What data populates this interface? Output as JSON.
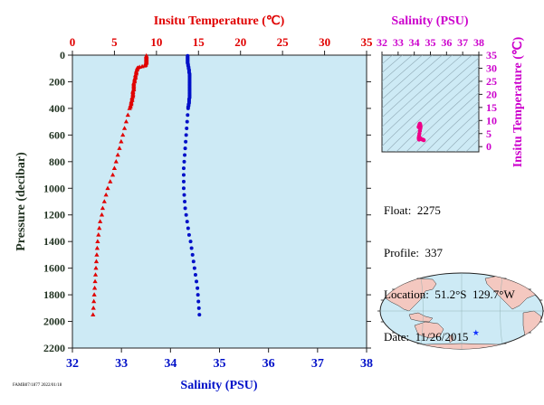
{
  "colors": {
    "panel_bg": "#cdeaf5",
    "temperature": "#e00000",
    "salinity": "#0010c8",
    "pressure_axis": "#223322",
    "ts_axis": "#cc00cc",
    "ts_points": "#ee0088",
    "float_marker": "#1133ff"
  },
  "chart_data": [
    {
      "type": "scatter",
      "top_axis_title": "Insitu Temperature (℃)",
      "bottom_axis_title": "Salinity (PSU)",
      "left_axis_title": "Pressure (decibar)",
      "temperature_ticks": [
        "0",
        "5",
        "10",
        "15",
        "20",
        "25",
        "30",
        "35"
      ],
      "salinity_ticks": [
        "32",
        "33",
        "34",
        "35",
        "36",
        "37",
        "38"
      ],
      "pressure_ticks": [
        "0",
        "200",
        "400",
        "600",
        "800",
        "1000",
        "1200",
        "1400",
        "1600",
        "1800",
        "2000",
        "2200"
      ],
      "temperature_range": [
        0,
        35
      ],
      "salinity_range": [
        32,
        38
      ],
      "pressure_range": [
        0,
        2200
      ],
      "series": [
        {
          "variable": "temperature",
          "marker": "triangle",
          "points": [
            [
              8.8,
              5
            ],
            [
              8.8,
              10
            ],
            [
              8.8,
              15
            ],
            [
              8.8,
              20
            ],
            [
              8.8,
              25
            ],
            [
              8.8,
              30
            ],
            [
              8.8,
              35
            ],
            [
              8.8,
              40
            ],
            [
              8.8,
              45
            ],
            [
              8.8,
              50
            ],
            [
              8.8,
              55
            ],
            [
              8.8,
              60
            ],
            [
              8.7,
              65
            ],
            [
              8.7,
              70
            ],
            [
              8.7,
              75
            ],
            [
              8.6,
              80
            ],
            [
              8.3,
              85
            ],
            [
              8.0,
              90
            ],
            [
              7.8,
              95
            ],
            [
              7.7,
              100
            ],
            [
              7.7,
              110
            ],
            [
              7.6,
              120
            ],
            [
              7.6,
              130
            ],
            [
              7.6,
              140
            ],
            [
              7.5,
              150
            ],
            [
              7.5,
              160
            ],
            [
              7.5,
              170
            ],
            [
              7.4,
              180
            ],
            [
              7.4,
              190
            ],
            [
              7.4,
              200
            ],
            [
              7.3,
              210
            ],
            [
              7.3,
              220
            ],
            [
              7.3,
              230
            ],
            [
              7.3,
              240
            ],
            [
              7.3,
              250
            ],
            [
              7.3,
              260
            ],
            [
              7.2,
              270
            ],
            [
              7.2,
              280
            ],
            [
              7.2,
              290
            ],
            [
              7.2,
              300
            ],
            [
              7.2,
              310
            ],
            [
              7.1,
              320
            ],
            [
              7.1,
              330
            ],
            [
              7.1,
              340
            ],
            [
              7.0,
              350
            ],
            [
              7.0,
              360
            ],
            [
              7.0,
              370
            ],
            [
              6.9,
              380
            ],
            [
              6.9,
              390
            ],
            [
              6.8,
              400
            ],
            [
              6.6,
              450
            ],
            [
              6.4,
              500
            ],
            [
              6.2,
              550
            ],
            [
              6.0,
              600
            ],
            [
              5.8,
              650
            ],
            [
              5.6,
              700
            ],
            [
              5.4,
              750
            ],
            [
              5.2,
              800
            ],
            [
              5.0,
              850
            ],
            [
              4.8,
              900
            ],
            [
              4.5,
              950
            ],
            [
              4.2,
              1000
            ],
            [
              4.0,
              1050
            ],
            [
              3.8,
              1100
            ],
            [
              3.6,
              1150
            ],
            [
              3.5,
              1200
            ],
            [
              3.3,
              1250
            ],
            [
              3.2,
              1300
            ],
            [
              3.1,
              1350
            ],
            [
              3.0,
              1400
            ],
            [
              2.95,
              1450
            ],
            [
              2.9,
              1500
            ],
            [
              2.85,
              1550
            ],
            [
              2.8,
              1600
            ],
            [
              2.75,
              1650
            ],
            [
              2.7,
              1700
            ],
            [
              2.65,
              1750
            ],
            [
              2.6,
              1800
            ],
            [
              2.55,
              1850
            ],
            [
              2.5,
              1900
            ],
            [
              2.45,
              1950
            ]
          ]
        },
        {
          "variable": "salinity",
          "marker": "circle",
          "points": [
            [
              34.35,
              5
            ],
            [
              34.35,
              10
            ],
            [
              34.35,
              15
            ],
            [
              34.35,
              20
            ],
            [
              34.35,
              25
            ],
            [
              34.35,
              30
            ],
            [
              34.35,
              35
            ],
            [
              34.35,
              40
            ],
            [
              34.35,
              45
            ],
            [
              34.35,
              50
            ],
            [
              34.35,
              55
            ],
            [
              34.35,
              60
            ],
            [
              34.36,
              70
            ],
            [
              34.36,
              80
            ],
            [
              34.37,
              90
            ],
            [
              34.37,
              100
            ],
            [
              34.38,
              110
            ],
            [
              34.38,
              120
            ],
            [
              34.38,
              130
            ],
            [
              34.39,
              140
            ],
            [
              34.39,
              150
            ],
            [
              34.39,
              160
            ],
            [
              34.39,
              170
            ],
            [
              34.39,
              180
            ],
            [
              34.39,
              190
            ],
            [
              34.39,
              200
            ],
            [
              34.39,
              210
            ],
            [
              34.39,
              220
            ],
            [
              34.39,
              230
            ],
            [
              34.39,
              240
            ],
            [
              34.39,
              250
            ],
            [
              34.39,
              260
            ],
            [
              34.39,
              270
            ],
            [
              34.39,
              280
            ],
            [
              34.39,
              290
            ],
            [
              34.39,
              300
            ],
            [
              34.39,
              310
            ],
            [
              34.39,
              320
            ],
            [
              34.38,
              330
            ],
            [
              34.38,
              340
            ],
            [
              34.38,
              350
            ],
            [
              34.38,
              360
            ],
            [
              34.37,
              370
            ],
            [
              34.37,
              380
            ],
            [
              34.36,
              390
            ],
            [
              34.36,
              400
            ],
            [
              34.35,
              450
            ],
            [
              34.34,
              500
            ],
            [
              34.33,
              550
            ],
            [
              34.32,
              600
            ],
            [
              34.31,
              650
            ],
            [
              34.3,
              700
            ],
            [
              34.29,
              750
            ],
            [
              34.28,
              800
            ],
            [
              34.27,
              850
            ],
            [
              34.27,
              900
            ],
            [
              34.27,
              950
            ],
            [
              34.27,
              1000
            ],
            [
              34.28,
              1050
            ],
            [
              34.29,
              1100
            ],
            [
              34.3,
              1150
            ],
            [
              34.32,
              1200
            ],
            [
              34.34,
              1250
            ],
            [
              34.36,
              1300
            ],
            [
              34.38,
              1350
            ],
            [
              34.41,
              1400
            ],
            [
              34.43,
              1450
            ],
            [
              34.45,
              1500
            ],
            [
              34.47,
              1550
            ],
            [
              34.49,
              1600
            ],
            [
              34.51,
              1650
            ],
            [
              34.53,
              1700
            ],
            [
              34.55,
              1750
            ],
            [
              34.56,
              1800
            ],
            [
              34.57,
              1850
            ],
            [
              34.58,
              1900
            ],
            [
              34.59,
              1950
            ]
          ]
        }
      ]
    },
    {
      "type": "scatter",
      "top_axis_title": "Salinity (PSU)",
      "right_axis_title": "Insitu Temperature (℃)",
      "salinity_ticks": [
        "32",
        "33",
        "34",
        "35",
        "36",
        "37",
        "38"
      ],
      "temperature_ticks": [
        "0",
        "5",
        "10",
        "15",
        "20",
        "25",
        "30",
        "35"
      ],
      "salinity_range": [
        32,
        38
      ],
      "temperature_range": [
        -2,
        35
      ],
      "points": [
        [
          34.27,
          7.5
        ],
        [
          34.3,
          8.0
        ],
        [
          34.32,
          8.4
        ],
        [
          34.34,
          8.7
        ],
        [
          34.35,
          8.8
        ],
        [
          34.36,
          8.6
        ],
        [
          34.38,
          8.2
        ],
        [
          34.39,
          7.6
        ],
        [
          34.38,
          7.2
        ],
        [
          34.37,
          6.8
        ],
        [
          34.35,
          6.0
        ],
        [
          34.32,
          5.0
        ],
        [
          34.3,
          4.2
        ],
        [
          34.28,
          3.5
        ],
        [
          34.28,
          3.0
        ],
        [
          34.3,
          2.7
        ],
        [
          34.35,
          3.3
        ],
        [
          34.42,
          2.9
        ],
        [
          34.47,
          2.8
        ],
        [
          34.52,
          2.7
        ],
        [
          34.56,
          2.6
        ],
        [
          34.59,
          2.45
        ]
      ]
    }
  ],
  "float_info": {
    "float": "Float:  2275",
    "profile": "Profile:  337",
    "location": "Location:  51.2°S  129.7°W",
    "date": "Date:  11/26/2015"
  },
  "footer_text": "FAMB07/1877  2022/01/18",
  "map": {
    "float_lon": -129.7,
    "float_lat": -51.2,
    "center_lon": 180
  }
}
